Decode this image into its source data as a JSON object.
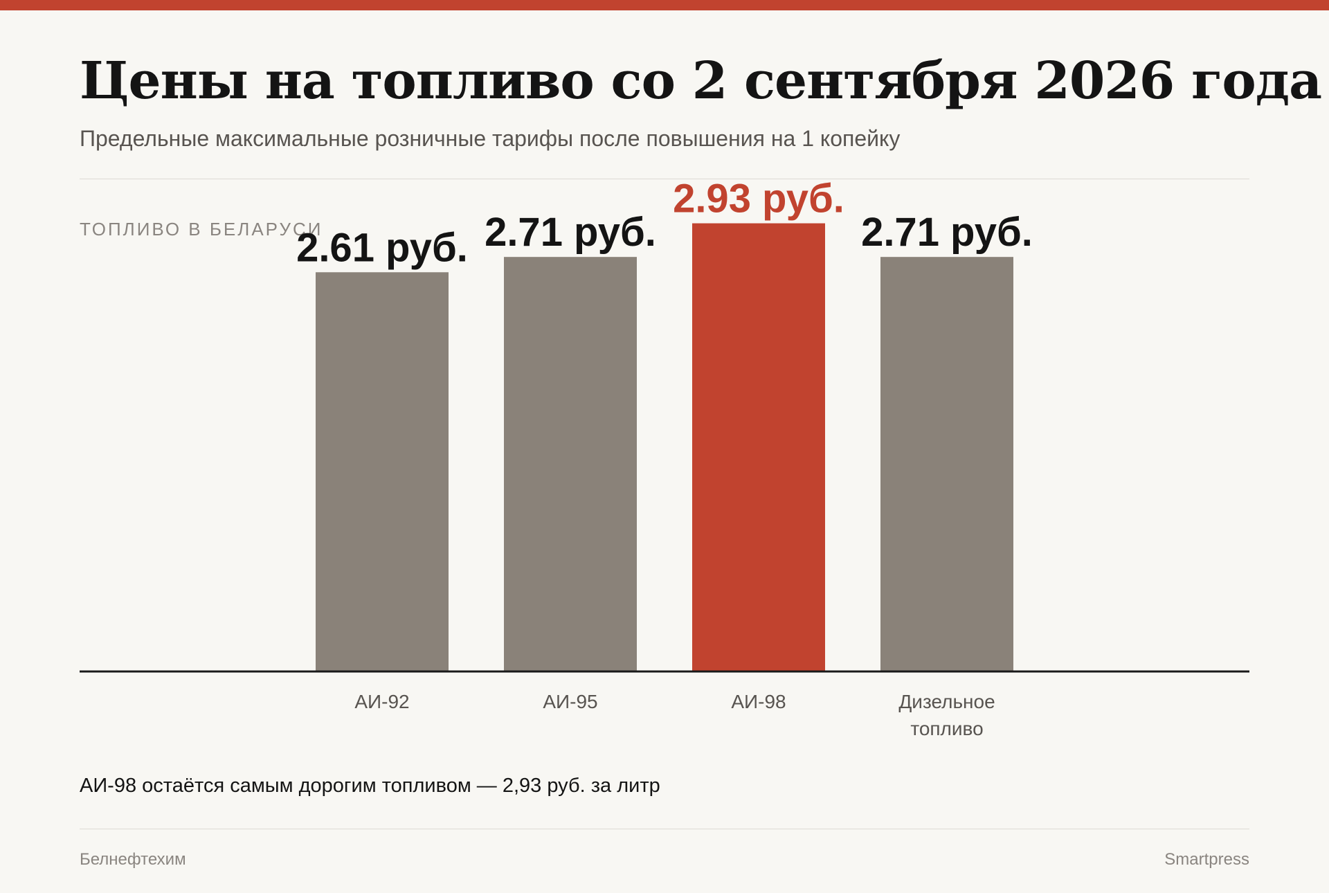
{
  "title": "Цены на топливо со 2 сентября 2026 года",
  "subtitle": "Предельные максимальные розничные тарифы после повышения на 1 копейку",
  "section_label": "ТОПЛИВО В БЕЛАРУСИ",
  "note": "АИ-98 остаётся самым дорогим топливом — 2,93 руб. за литр",
  "source": "Белнефтехим",
  "brand": "Smartpress",
  "colors": {
    "accent": "#c1432f",
    "bar": "#8a8279",
    "label": "#141414",
    "highlight_label": "#c1432f"
  },
  "chart_data": {
    "type": "bar",
    "categories": [
      "АИ-92",
      "АИ-95",
      "АИ-98",
      "Дизельное топливо"
    ],
    "category_lines": [
      [
        "АИ-92"
      ],
      [
        "АИ-95"
      ],
      [
        "АИ-98"
      ],
      [
        "Дизельное",
        "топливо"
      ]
    ],
    "values": [
      2.61,
      2.71,
      2.93,
      2.71
    ],
    "value_labels": [
      "2.61 руб.",
      "2.71 руб.",
      "2.93 руб.",
      "2.71 руб."
    ],
    "highlight_index": 2,
    "ylim": [
      0,
      3.1
    ],
    "grid": false,
    "unit": "руб."
  }
}
